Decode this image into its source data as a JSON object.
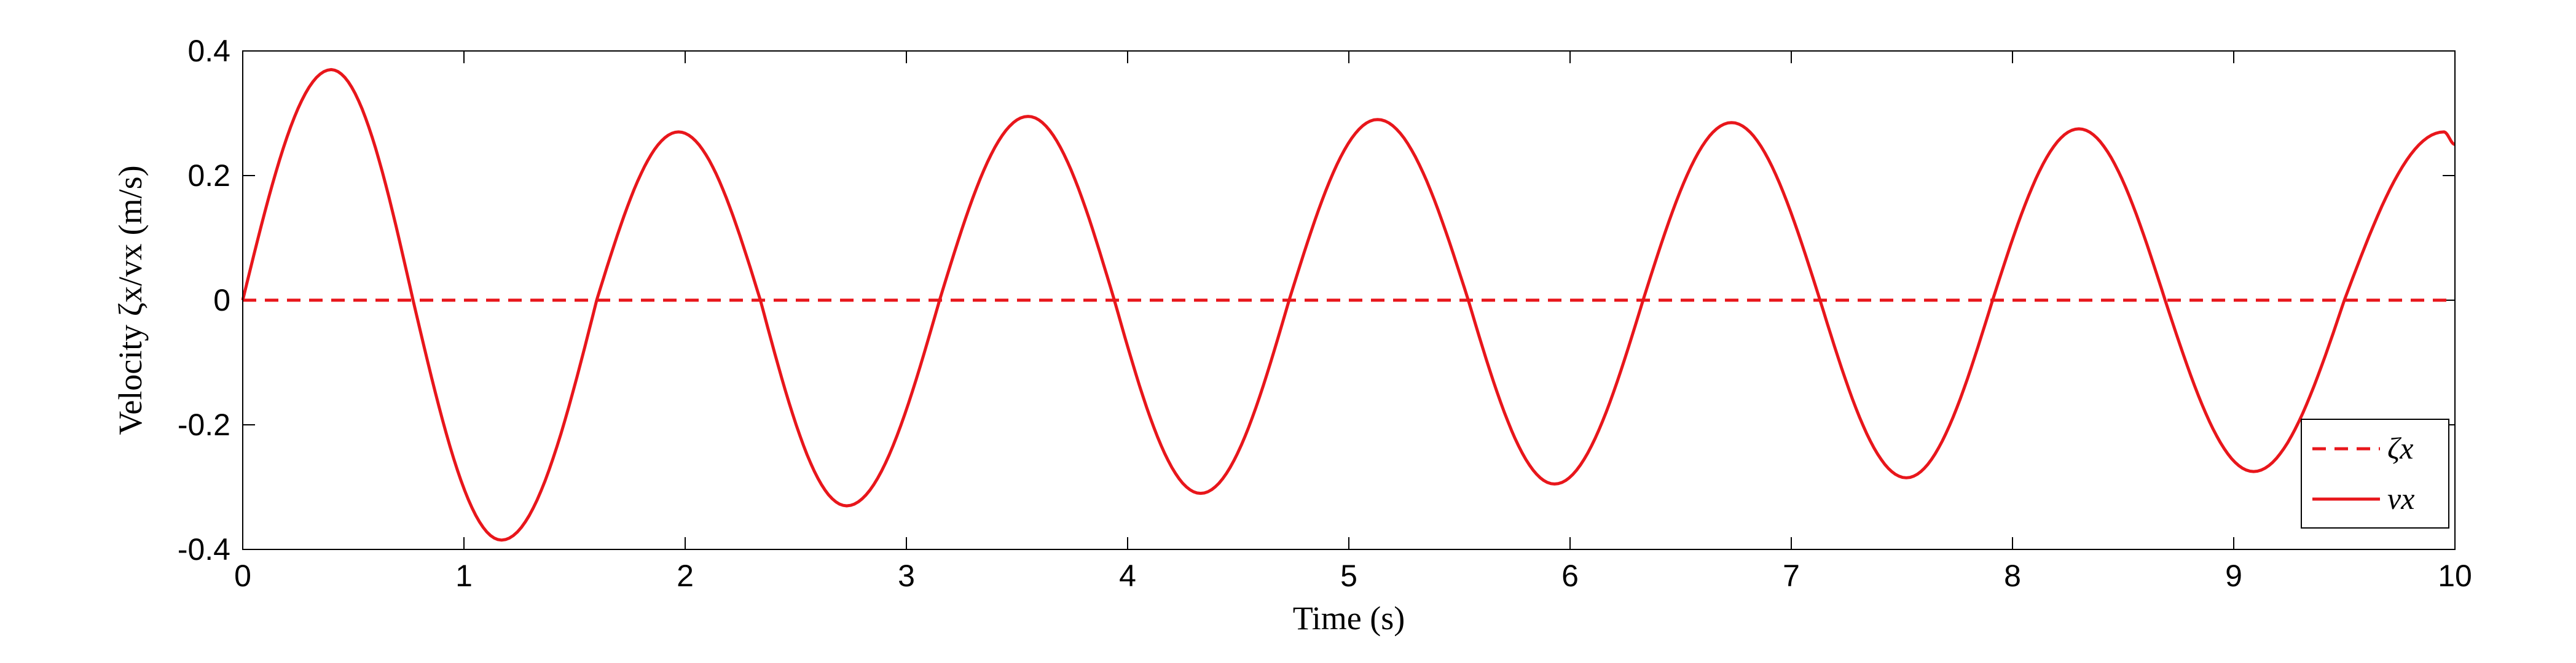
{
  "chart_data": {
    "type": "line",
    "xlabel": "Time (s)",
    "ylabel": "Velocity ζx/vx (m/s)",
    "xlim": [
      0,
      10
    ],
    "ylim": [
      -0.4,
      0.4
    ],
    "x_ticks": [
      "0",
      "1",
      "2",
      "3",
      "4",
      "5",
      "6",
      "7",
      "8",
      "9",
      "10"
    ],
    "y_ticks": [
      "0.4",
      "0.2",
      "0",
      "-0.2",
      "-0.4"
    ],
    "grid": false,
    "legend_position": "bottom-right",
    "series": [
      {
        "name": "ζx",
        "style": "dashed",
        "color": "#e8161b",
        "x": [
          0,
          10
        ],
        "y": [
          0,
          0
        ]
      },
      {
        "name": "vx",
        "style": "solid",
        "color": "#e8161b",
        "x": [
          0,
          0.4,
          0.77,
          1.17,
          1.6,
          1.97,
          2.34,
          2.73,
          3.15,
          3.55,
          3.94,
          4.33,
          4.73,
          5.13,
          5.54,
          5.93,
          6.33,
          6.73,
          7.13,
          7.52,
          7.91,
          8.3,
          8.69,
          9.09,
          9.5,
          9.95,
          10
        ],
        "y": [
          0,
          0.37,
          0,
          -0.385,
          0,
          0.27,
          0,
          -0.33,
          0,
          0.295,
          0,
          -0.31,
          0,
          0.29,
          0,
          -0.295,
          0,
          0.285,
          0,
          -0.285,
          0,
          0.275,
          0,
          -0.275,
          0,
          0.27,
          0.25
        ]
      }
    ]
  }
}
